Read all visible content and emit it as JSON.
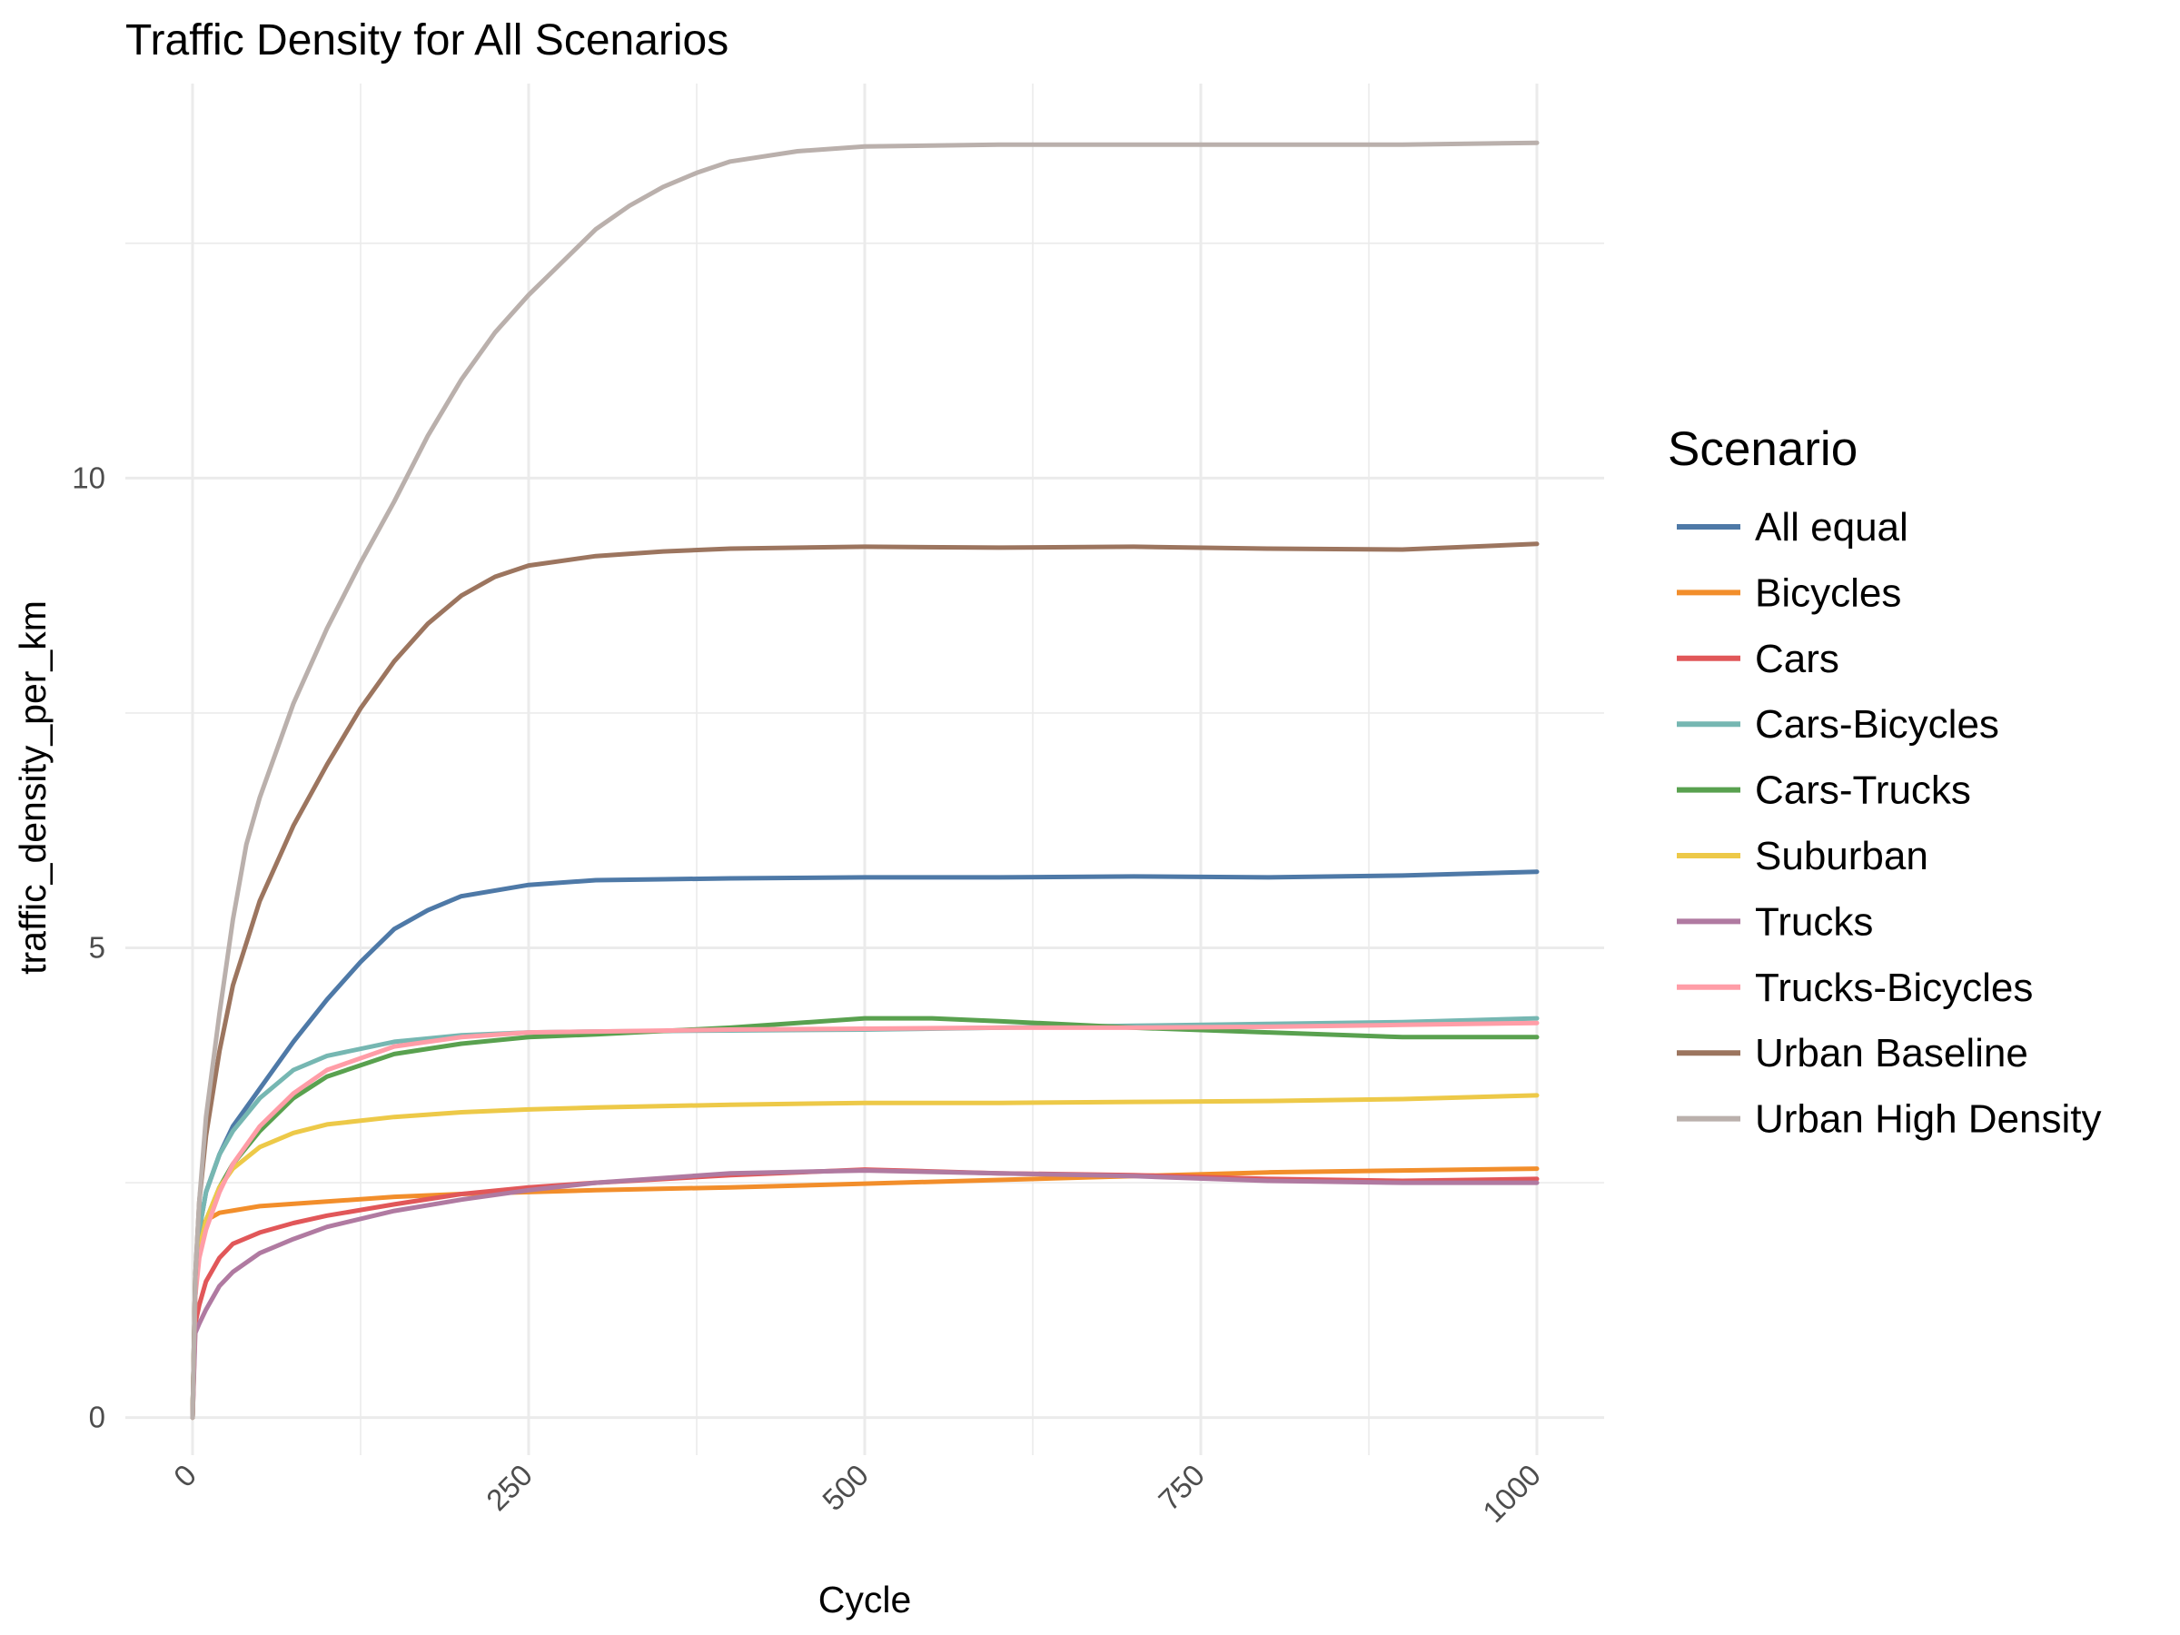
{
  "chart_data": {
    "type": "line",
    "title": "Traffic Density for All Scenarios",
    "xlabel": "Cycle",
    "ylabel": "traffic_density_per_km",
    "xlim": [
      -50,
      1050
    ],
    "ylim": [
      -0.4,
      14.2
    ],
    "x_ticks": [
      0,
      250,
      500,
      750,
      1000
    ],
    "x_tick_labels": [
      "0",
      "250",
      "500",
      "750",
      "1000"
    ],
    "y_ticks": [
      0,
      5,
      10
    ],
    "y_tick_labels": [
      "0",
      "5",
      "10"
    ],
    "grid": true,
    "legend": {
      "title": "Scenario",
      "position": "right"
    },
    "series": [
      {
        "name": "All equal",
        "color": "#4e79a7",
        "points": [
          [
            0,
            0
          ],
          [
            2,
            1.3
          ],
          [
            5,
            2.0
          ],
          [
            10,
            2.4
          ],
          [
            20,
            2.8
          ],
          [
            30,
            3.1
          ],
          [
            50,
            3.5
          ],
          [
            75,
            4.0
          ],
          [
            100,
            4.45
          ],
          [
            125,
            4.85
          ],
          [
            150,
            5.2
          ],
          [
            175,
            5.4
          ],
          [
            200,
            5.55
          ],
          [
            250,
            5.67
          ],
          [
            300,
            5.72
          ],
          [
            350,
            5.73
          ],
          [
            400,
            5.74
          ],
          [
            500,
            5.75
          ],
          [
            600,
            5.75
          ],
          [
            700,
            5.76
          ],
          [
            800,
            5.75
          ],
          [
            900,
            5.77
          ],
          [
            1000,
            5.81
          ]
        ]
      },
      {
        "name": "Bicycles",
        "color": "#f28e2b",
        "points": [
          [
            0,
            0
          ],
          [
            2,
            1.5
          ],
          [
            5,
            2.0
          ],
          [
            10,
            2.1
          ],
          [
            20,
            2.18
          ],
          [
            50,
            2.25
          ],
          [
            100,
            2.3
          ],
          [
            150,
            2.35
          ],
          [
            200,
            2.38
          ],
          [
            250,
            2.4
          ],
          [
            300,
            2.42
          ],
          [
            400,
            2.45
          ],
          [
            500,
            2.49
          ],
          [
            600,
            2.53
          ],
          [
            700,
            2.57
          ],
          [
            800,
            2.61
          ],
          [
            900,
            2.63
          ],
          [
            1000,
            2.65
          ]
        ]
      },
      {
        "name": "Cars",
        "color": "#e15759",
        "points": [
          [
            0,
            0
          ],
          [
            2,
            1.0
          ],
          [
            5,
            1.2
          ],
          [
            10,
            1.45
          ],
          [
            20,
            1.7
          ],
          [
            30,
            1.85
          ],
          [
            50,
            1.97
          ],
          [
            75,
            2.07
          ],
          [
            100,
            2.15
          ],
          [
            150,
            2.27
          ],
          [
            200,
            2.38
          ],
          [
            250,
            2.45
          ],
          [
            300,
            2.5
          ],
          [
            400,
            2.58
          ],
          [
            500,
            2.64
          ],
          [
            600,
            2.6
          ],
          [
            700,
            2.58
          ],
          [
            800,
            2.54
          ],
          [
            900,
            2.52
          ],
          [
            1000,
            2.54
          ]
        ]
      },
      {
        "name": "Cars-Bicycles",
        "color": "#76b7b2",
        "points": [
          [
            0,
            0
          ],
          [
            2,
            1.5
          ],
          [
            5,
            2.0
          ],
          [
            10,
            2.4
          ],
          [
            20,
            2.8
          ],
          [
            30,
            3.05
          ],
          [
            50,
            3.4
          ],
          [
            75,
            3.7
          ],
          [
            100,
            3.85
          ],
          [
            150,
            4.0
          ],
          [
            200,
            4.07
          ],
          [
            250,
            4.1
          ],
          [
            300,
            4.11
          ],
          [
            400,
            4.12
          ],
          [
            500,
            4.13
          ],
          [
            600,
            4.15
          ],
          [
            700,
            4.17
          ],
          [
            800,
            4.19
          ],
          [
            900,
            4.21
          ],
          [
            1000,
            4.25
          ]
        ]
      },
      {
        "name": "Cars-Trucks",
        "color": "#59a14f",
        "points": [
          [
            0,
            0
          ],
          [
            2,
            1.4
          ],
          [
            5,
            1.8
          ],
          [
            10,
            2.1
          ],
          [
            20,
            2.45
          ],
          [
            30,
            2.7
          ],
          [
            50,
            3.05
          ],
          [
            75,
            3.4
          ],
          [
            100,
            3.63
          ],
          [
            150,
            3.87
          ],
          [
            200,
            3.98
          ],
          [
            250,
            4.05
          ],
          [
            300,
            4.08
          ],
          [
            400,
            4.15
          ],
          [
            500,
            4.25
          ],
          [
            550,
            4.25
          ],
          [
            600,
            4.22
          ],
          [
            700,
            4.15
          ],
          [
            800,
            4.1
          ],
          [
            900,
            4.05
          ],
          [
            1000,
            4.05
          ]
        ]
      },
      {
        "name": "Suburban",
        "color": "#edc948",
        "points": [
          [
            0,
            0
          ],
          [
            2,
            1.4
          ],
          [
            5,
            1.8
          ],
          [
            10,
            2.1
          ],
          [
            20,
            2.45
          ],
          [
            30,
            2.65
          ],
          [
            50,
            2.88
          ],
          [
            75,
            3.03
          ],
          [
            100,
            3.12
          ],
          [
            150,
            3.2
          ],
          [
            200,
            3.25
          ],
          [
            250,
            3.28
          ],
          [
            300,
            3.3
          ],
          [
            400,
            3.33
          ],
          [
            500,
            3.35
          ],
          [
            600,
            3.35
          ],
          [
            700,
            3.36
          ],
          [
            800,
            3.37
          ],
          [
            900,
            3.39
          ],
          [
            1000,
            3.43
          ]
        ]
      },
      {
        "name": "Trucks",
        "color": "#b07aa1",
        "points": [
          [
            0,
            0
          ],
          [
            2,
            0.9
          ],
          [
            5,
            1.0
          ],
          [
            10,
            1.15
          ],
          [
            20,
            1.4
          ],
          [
            30,
            1.55
          ],
          [
            50,
            1.75
          ],
          [
            75,
            1.9
          ],
          [
            100,
            2.03
          ],
          [
            150,
            2.2
          ],
          [
            200,
            2.32
          ],
          [
            250,
            2.42
          ],
          [
            300,
            2.5
          ],
          [
            400,
            2.6
          ],
          [
            500,
            2.63
          ],
          [
            600,
            2.6
          ],
          [
            700,
            2.57
          ],
          [
            800,
            2.52
          ],
          [
            900,
            2.5
          ],
          [
            1000,
            2.5
          ]
        ]
      },
      {
        "name": "Trucks-Bicycles",
        "color": "#ff9da7",
        "points": [
          [
            0,
            0
          ],
          [
            2,
            1.3
          ],
          [
            5,
            1.7
          ],
          [
            10,
            2.0
          ],
          [
            20,
            2.4
          ],
          [
            30,
            2.7
          ],
          [
            50,
            3.1
          ],
          [
            75,
            3.45
          ],
          [
            100,
            3.7
          ],
          [
            150,
            3.95
          ],
          [
            200,
            4.05
          ],
          [
            250,
            4.1
          ],
          [
            300,
            4.11
          ],
          [
            400,
            4.13
          ],
          [
            500,
            4.14
          ],
          [
            600,
            4.15
          ],
          [
            700,
            4.15
          ],
          [
            800,
            4.16
          ],
          [
            900,
            4.18
          ],
          [
            1000,
            4.2
          ]
        ]
      },
      {
        "name": "Urban Baseline",
        "color": "#9c755f",
        "points": [
          [
            0,
            0
          ],
          [
            2,
            1.5
          ],
          [
            5,
            2.3
          ],
          [
            10,
            3.0
          ],
          [
            20,
            3.9
          ],
          [
            30,
            4.6
          ],
          [
            50,
            5.5
          ],
          [
            75,
            6.3
          ],
          [
            100,
            6.95
          ],
          [
            125,
            7.55
          ],
          [
            150,
            8.05
          ],
          [
            175,
            8.45
          ],
          [
            200,
            8.75
          ],
          [
            225,
            8.95
          ],
          [
            250,
            9.07
          ],
          [
            300,
            9.17
          ],
          [
            350,
            9.22
          ],
          [
            400,
            9.25
          ],
          [
            500,
            9.27
          ],
          [
            600,
            9.26
          ],
          [
            700,
            9.27
          ],
          [
            800,
            9.25
          ],
          [
            900,
            9.24
          ],
          [
            1000,
            9.3
          ]
        ]
      },
      {
        "name": "Urban High Density",
        "color": "#bab0ac",
        "points": [
          [
            0,
            0
          ],
          [
            2,
            1.5
          ],
          [
            5,
            2.3
          ],
          [
            10,
            3.2
          ],
          [
            20,
            4.3
          ],
          [
            30,
            5.3
          ],
          [
            40,
            6.1
          ],
          [
            50,
            6.6
          ],
          [
            75,
            7.6
          ],
          [
            100,
            8.4
          ],
          [
            125,
            9.1
          ],
          [
            150,
            9.75
          ],
          [
            175,
            10.45
          ],
          [
            200,
            11.05
          ],
          [
            225,
            11.55
          ],
          [
            250,
            11.95
          ],
          [
            275,
            12.3
          ],
          [
            300,
            12.65
          ],
          [
            325,
            12.9
          ],
          [
            350,
            13.1
          ],
          [
            375,
            13.25
          ],
          [
            400,
            13.37
          ],
          [
            450,
            13.48
          ],
          [
            500,
            13.53
          ],
          [
            600,
            13.55
          ],
          [
            700,
            13.55
          ],
          [
            800,
            13.55
          ],
          [
            900,
            13.55
          ],
          [
            1000,
            13.57
          ]
        ]
      }
    ]
  }
}
